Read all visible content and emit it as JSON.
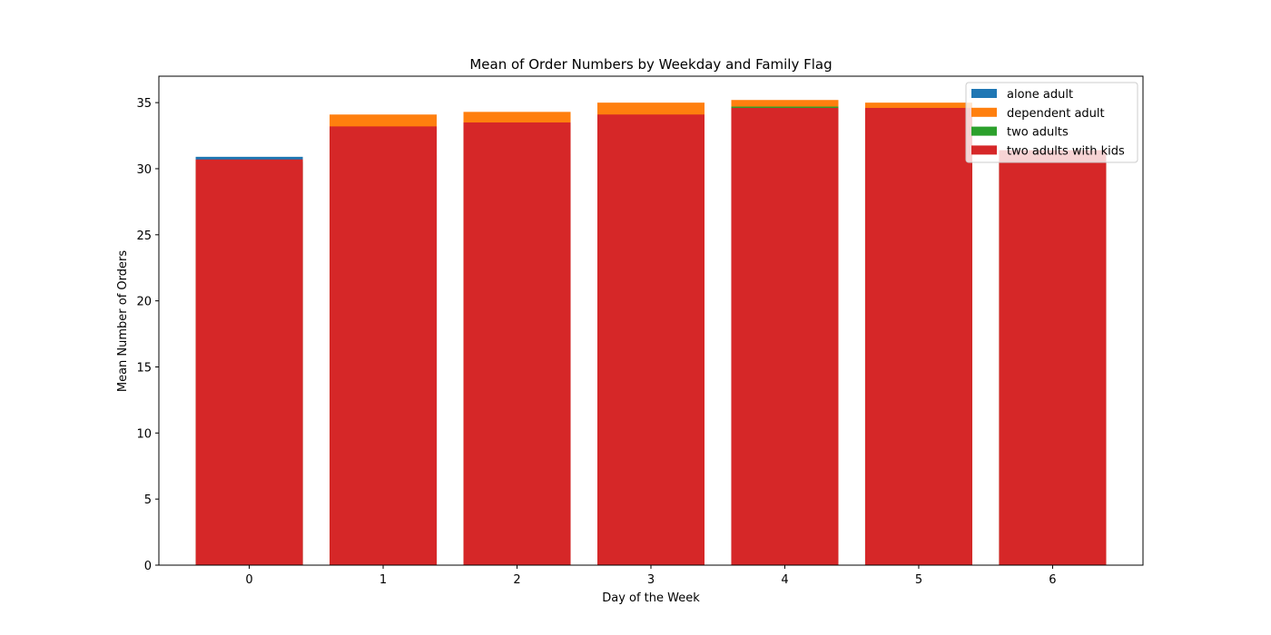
{
  "chart_data": {
    "type": "bar",
    "stacked": false,
    "title": "Mean of Order Numbers by Weekday and Family Flag",
    "xlabel": "Day of the Week",
    "ylabel": "Mean Number of Orders",
    "categories": [
      "0",
      "1",
      "2",
      "3",
      "4",
      "5",
      "6"
    ],
    "ylim": [
      0,
      37
    ],
    "yticks": [
      0,
      5,
      10,
      15,
      20,
      25,
      30,
      35
    ],
    "grid": false,
    "legend_position": "top-right",
    "series": [
      {
        "name": "alone adult",
        "color": "#1f77b4",
        "values": [
          30.9,
          31.0,
          31.1,
          31.3,
          31.5,
          31.4,
          30.8
        ]
      },
      {
        "name": "dependent adult",
        "color": "#ff7f0e",
        "values": [
          30.6,
          34.1,
          34.3,
          35.0,
          35.2,
          35.0,
          31.2
        ]
      },
      {
        "name": "two adults",
        "color": "#2ca02c",
        "values": [
          30.5,
          33.0,
          33.4,
          33.9,
          34.7,
          34.5,
          31.0
        ]
      },
      {
        "name": "two adults with kids",
        "color": "#d62728",
        "values": [
          30.7,
          33.2,
          33.5,
          34.1,
          34.6,
          34.6,
          31.4
        ]
      }
    ]
  }
}
